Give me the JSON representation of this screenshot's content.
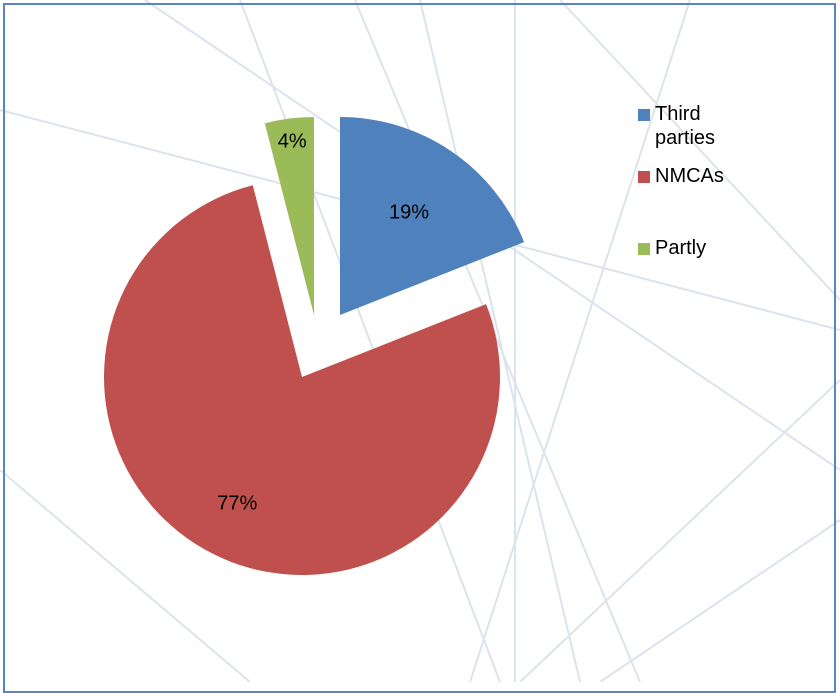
{
  "chart_data": {
    "type": "pie",
    "title": "",
    "series": [
      {
        "labels": [
          "Third parties",
          "NMCAs",
          "Partly"
        ],
        "values": [
          19,
          77,
          4
        ],
        "data_labels": [
          "19%",
          "77%",
          "4%"
        ],
        "colors": [
          "#4f81bd",
          "#c0504d",
          "#9bbb59"
        ],
        "exploded": true
      }
    ],
    "legend": {
      "position": "right",
      "entries": [
        "Third parties",
        "NMCAs",
        "Partly"
      ]
    }
  },
  "colors": {
    "frame_border": "#5b84c4",
    "background_lines": "#dde4ee"
  }
}
